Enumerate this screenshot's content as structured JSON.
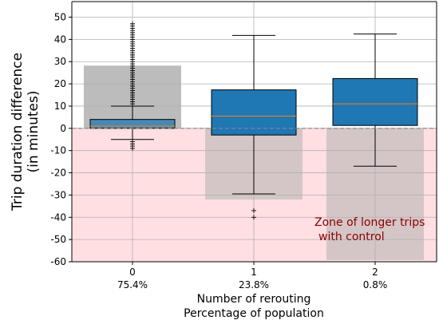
{
  "chart_data": {
    "type": "box",
    "ylabel": [
      "Trip duration difference",
      "(in minutes)"
    ],
    "xlabel": [
      "Number of rerouting",
      "Percentage of population"
    ],
    "ylim": [
      -60,
      57
    ],
    "yticks": [
      -60,
      -50,
      -40,
      -30,
      -20,
      -10,
      0,
      10,
      20,
      30,
      40,
      50
    ],
    "categories": [
      "0",
      "1",
      "2"
    ],
    "percentages": [
      "75.4%",
      "23.8%",
      "0.8%"
    ],
    "population_bars": [
      28.2,
      -32,
      -59.2
    ],
    "population_bar_color": "#b0b0b0",
    "boxes": [
      {
        "name": "0",
        "whisker_low": -5,
        "q1": 0,
        "median": 1,
        "q3": 4,
        "whisker_high": 10,
        "fliers": [
          -6,
          -7,
          -8,
          -9,
          11,
          12,
          13,
          14,
          15,
          16,
          17,
          18,
          19,
          20,
          21,
          22,
          23,
          24,
          25,
          26,
          27,
          28,
          29,
          30,
          31,
          32,
          33,
          34,
          35,
          36,
          37,
          38,
          39,
          40,
          41,
          42,
          43,
          44,
          45,
          46,
          47
        ]
      },
      {
        "name": "1",
        "whisker_low": -29.5,
        "q1": -3,
        "median": 5.5,
        "q3": 17.3,
        "whisker_high": 41.8,
        "fliers": [
          -37,
          -40
        ]
      },
      {
        "name": "2",
        "whisker_low": -17,
        "q1": 1.3,
        "median": 11,
        "q3": 22.4,
        "whisker_high": 42.4,
        "fliers": []
      }
    ],
    "box_color": "#1f77b4",
    "median_color": "#ff7f0e",
    "zone_color": "#ffdfe2",
    "zone_label": [
      "Zone of longer trips",
      "with control"
    ],
    "reference_line": 0
  }
}
